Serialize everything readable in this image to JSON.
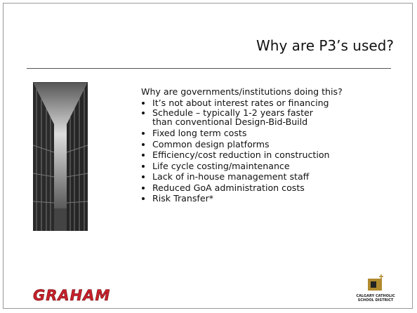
{
  "slide": {
    "title": "Why are P3’s used?",
    "intro": "Why are governments/institutions doing this?",
    "bullets": [
      "It’s not about interest rates or financing",
      "Schedule – typically 1-2 years faster than conventional Design-Bid-Build",
      "Fixed long term costs",
      "Common design platforms",
      "Efficiency/cost reduction in construction",
      "Life cycle costing/maintenance",
      "Lack of in-house management staff",
      "Reduced GoA administration costs",
      "Risk Transfer*"
    ],
    "logos": {
      "left": "GRAHAM",
      "right": [
        "CALGARY CATHOLIC",
        "SCHOOL DISTRICT"
      ]
    }
  }
}
